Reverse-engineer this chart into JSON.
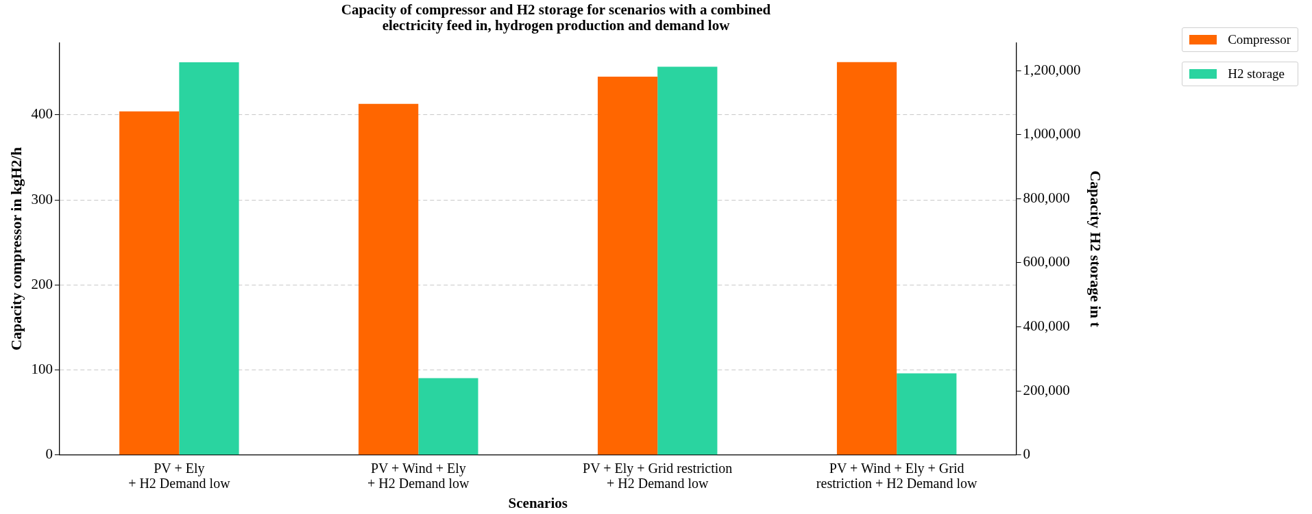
{
  "chart_data": {
    "type": "bar",
    "title": "Capacity of compressor and H2 storage for scenarios with a combined\nelectricity feed in, hydrogen production and demand low",
    "xlabel": "Scenarios",
    "ylabel": "Capacity compressor in kgH2/h",
    "y2label": "Capacity H2 storage in t",
    "categories": [
      "PV + Ely\n+ H2 Demand low",
      "PV + Wind + Ely\n+ H2 Demand low",
      "PV + Ely + Grid restriction\n+ H2 Demand low",
      "PV + Wind + Ely + Grid\nrestriction + H2 Demand low"
    ],
    "series": [
      {
        "name": "Compressor",
        "color": "#ff6600",
        "values": [
          404,
          413,
          445,
          462
        ]
      },
      {
        "name": "H2 storage",
        "color": "#2ad4a0",
        "axis": "y2",
        "values": [
          1226000,
          240000,
          1212000,
          255000
        ]
      }
    ],
    "ylim": [
      0,
      485
    ],
    "yticks": [
      0,
      100,
      200,
      300,
      400
    ],
    "y2lim": [
      0,
      1287500
    ],
    "y2ticks": [
      0,
      {
        "value": 200000,
        "label": "200,000"
      },
      {
        "value": 400000,
        "label": "400,000"
      },
      {
        "value": 600000,
        "label": "600,000"
      },
      {
        "value": 800000,
        "label": "800,000"
      },
      {
        "value": 1000000,
        "label": "1,000,000"
      },
      {
        "value": 1200000,
        "label": "1,200,000"
      }
    ],
    "grid": "y",
    "legend": "top right"
  }
}
